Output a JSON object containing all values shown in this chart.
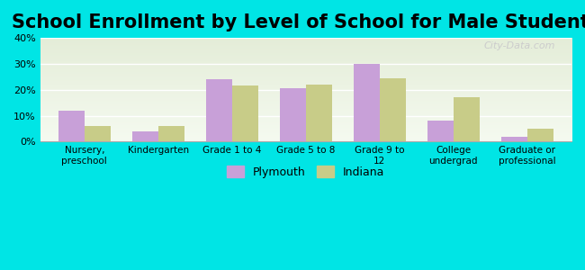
{
  "title": "School Enrollment by Level of School for Male Students",
  "categories": [
    "Nursery,\npreschool",
    "Kindergarten",
    "Grade 1 to 4",
    "Grade 5 to 8",
    "Grade 9 to\n12",
    "College\nundergrad",
    "Graduate or\nprofessional"
  ],
  "plymouth_values": [
    12,
    4,
    24,
    20.5,
    30,
    8,
    2
  ],
  "indiana_values": [
    6,
    6,
    21.5,
    22,
    24.5,
    17,
    5
  ],
  "plymouth_color": "#c8a0d8",
  "indiana_color": "#c8cc88",
  "figure_bg_color": "#00e5e5",
  "plot_grad_top": "#e4edd8",
  "plot_grad_bottom": "#f5faf0",
  "ylim": [
    0,
    40
  ],
  "yticks": [
    0,
    10,
    20,
    30,
    40
  ],
  "legend_labels": [
    "Plymouth",
    "Indiana"
  ],
  "title_fontsize": 15,
  "bar_width": 0.35,
  "watermark_text": "City-Data.com"
}
